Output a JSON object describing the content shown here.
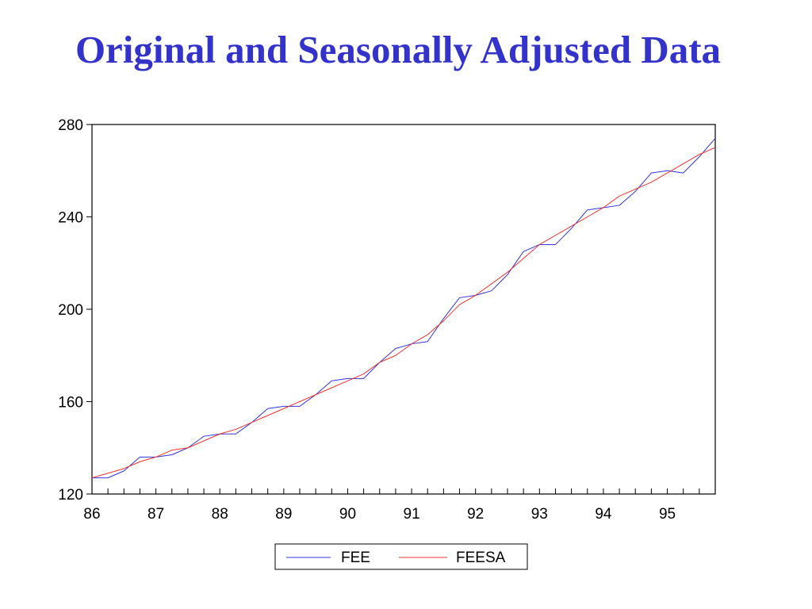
{
  "slide": {
    "title": "Original and Seasonally Adjusted Data"
  },
  "colors": {
    "title": "#3333cc",
    "fee": "#3333dd",
    "feesa": "#ee3333"
  },
  "chart_data": {
    "type": "line",
    "frequency": "quarterly",
    "x_start": 1986.0,
    "x_step": 0.25,
    "xlim": [
      1986.0,
      1995.75
    ],
    "ylim": [
      120,
      280
    ],
    "y_ticks": [
      120,
      160,
      200,
      240,
      280
    ],
    "y_tick_labels": [
      "120",
      "160",
      "200",
      "240",
      "280"
    ],
    "x_ticks": [
      1986,
      1987,
      1988,
      1989,
      1990,
      1991,
      1992,
      1993,
      1994,
      1995
    ],
    "x_tick_labels": [
      "86",
      "87",
      "88",
      "89",
      "90",
      "91",
      "92",
      "93",
      "94",
      "95"
    ],
    "grid": false,
    "legend_position": "bottom-center",
    "series": [
      {
        "name": "FEE",
        "color": "#3333dd",
        "values": [
          127,
          127,
          130,
          136,
          136,
          137,
          140,
          145,
          146,
          146,
          151,
          157,
          158,
          158,
          163,
          169,
          170,
          170,
          177,
          183,
          185,
          186,
          196,
          205,
          206,
          208,
          215,
          225,
          228,
          228,
          235,
          243,
          244,
          245,
          251,
          259,
          260,
          259,
          266,
          274
        ]
      },
      {
        "name": "FEESA",
        "color": "#ee3333",
        "values": [
          127,
          129,
          131,
          134,
          136,
          139,
          140,
          143,
          146,
          148,
          151,
          154,
          157,
          160,
          163,
          166,
          169,
          172,
          177,
          180,
          185,
          189,
          195,
          202,
          206,
          211,
          216,
          222,
          228,
          232,
          236,
          240,
          244,
          249,
          252,
          255,
          259,
          263,
          267,
          270
        ]
      }
    ]
  }
}
